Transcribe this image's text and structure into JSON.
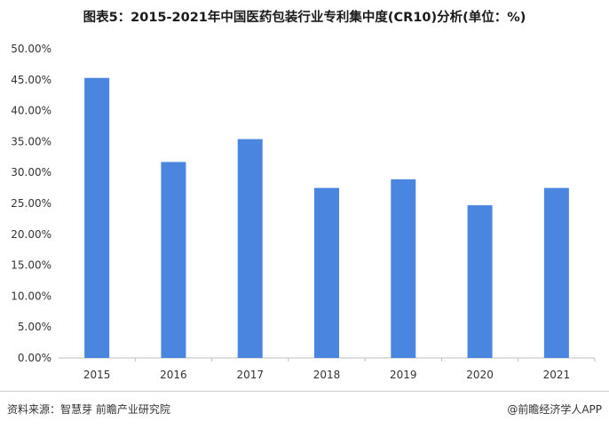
{
  "title": "图表5：2015-2021年中国医药包装行业专利集中度(CR10)分析(单位：%)",
  "footer": {
    "source": "资料来源：智慧芽 前瞻产业研究院",
    "brand": "@前瞻经济学人APP"
  },
  "colors": {
    "bar": "#4a86e0",
    "axis": "#bfbfbf",
    "text": "#333333"
  },
  "chart_data": {
    "type": "bar",
    "title": "图表5：2015-2021年中国医药包装行业专利集中度(CR10)分析(单位：%)",
    "xlabel": "",
    "ylabel": "",
    "categories": [
      "2015",
      "2016",
      "2017",
      "2018",
      "2019",
      "2020",
      "2021"
    ],
    "values": [
      45.3,
      31.7,
      35.4,
      27.5,
      28.9,
      24.7,
      27.5
    ],
    "ylim": [
      0,
      50
    ],
    "yticks": [
      "0.00%",
      "5.00%",
      "10.00%",
      "15.00%",
      "20.00%",
      "25.00%",
      "30.00%",
      "35.00%",
      "40.00%",
      "45.00%",
      "50.00%"
    ],
    "grid": false,
    "legend": "none"
  }
}
